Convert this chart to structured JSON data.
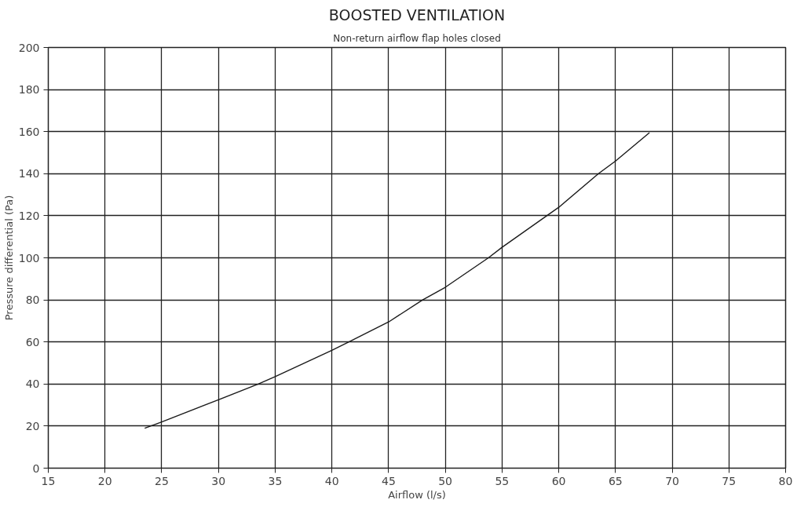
{
  "chart_data": {
    "type": "line",
    "title": "BOOSTED VENTILATION",
    "subtitle": "Non-return airflow flap holes closed",
    "xlabel": "Airflow (l/s)",
    "ylabel": "Pressure differential (Pa)",
    "x": [
      23.5,
      25,
      30,
      33.5,
      35,
      40,
      41.5,
      45,
      48,
      50,
      53.8,
      55,
      60,
      63.5,
      65,
      68
    ],
    "series": [
      {
        "color": "#1a1a1a",
        "values": [
          19,
          22,
          32.5,
          40,
          43.5,
          56,
          60,
          69.5,
          80,
          86,
          100,
          105,
          124,
          140,
          146,
          159.5
        ]
      }
    ],
    "xlim": [
      15,
      80
    ],
    "xticks": [
      15,
      20,
      25,
      30,
      35,
      40,
      45,
      50,
      55,
      60,
      65,
      70,
      75,
      80
    ],
    "ylim": [
      0,
      200
    ],
    "yticks": [
      0,
      20,
      40,
      60,
      80,
      100,
      120,
      140,
      160,
      180,
      200
    ],
    "grid": true,
    "marker": "none",
    "line_style": "solid"
  }
}
